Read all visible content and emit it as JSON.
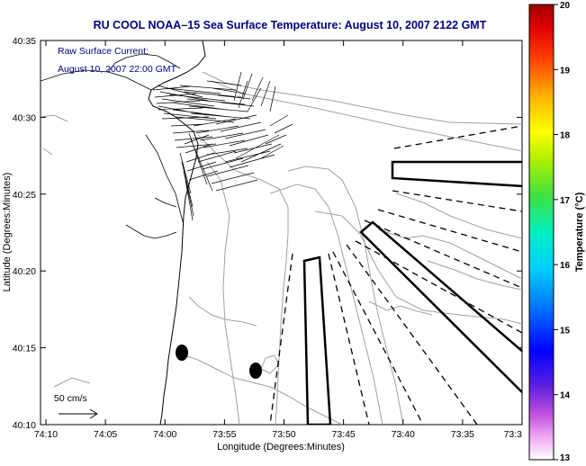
{
  "header": {
    "title": "RU COOL  NOAA–15  Sea Surface Temperature:  August 10, 2007 2122 GMT"
  },
  "annotations": {
    "current_line1": "Raw Surface Current:",
    "current_line2": "August 10, 2007 22:00 GMT",
    "scale_label": "50 cm/s"
  },
  "axes": {
    "xlabel": "Longitude (Degrees:Minutes)",
    "ylabel": "Latitude (Degrees:Minutes)",
    "x_ticks": [
      "74:10",
      "74:05",
      "74:00",
      "73:55",
      "73:50",
      "73:45",
      "73:40",
      "73:35",
      "73:3"
    ],
    "y_ticks": [
      "40:35",
      "40:30",
      "40:25",
      "40:20",
      "40:15",
      "40:10"
    ]
  },
  "colorbar": {
    "label": "Temperature (°C)",
    "ticks": [
      "20",
      "19",
      "18",
      "17",
      "16",
      "15",
      "14",
      "13"
    ],
    "min": 13,
    "max": 20
  },
  "colors": {
    "title": "#00008b",
    "annotation": "#00008b",
    "ink": "#000000",
    "contour": "#a0a0a0"
  }
}
